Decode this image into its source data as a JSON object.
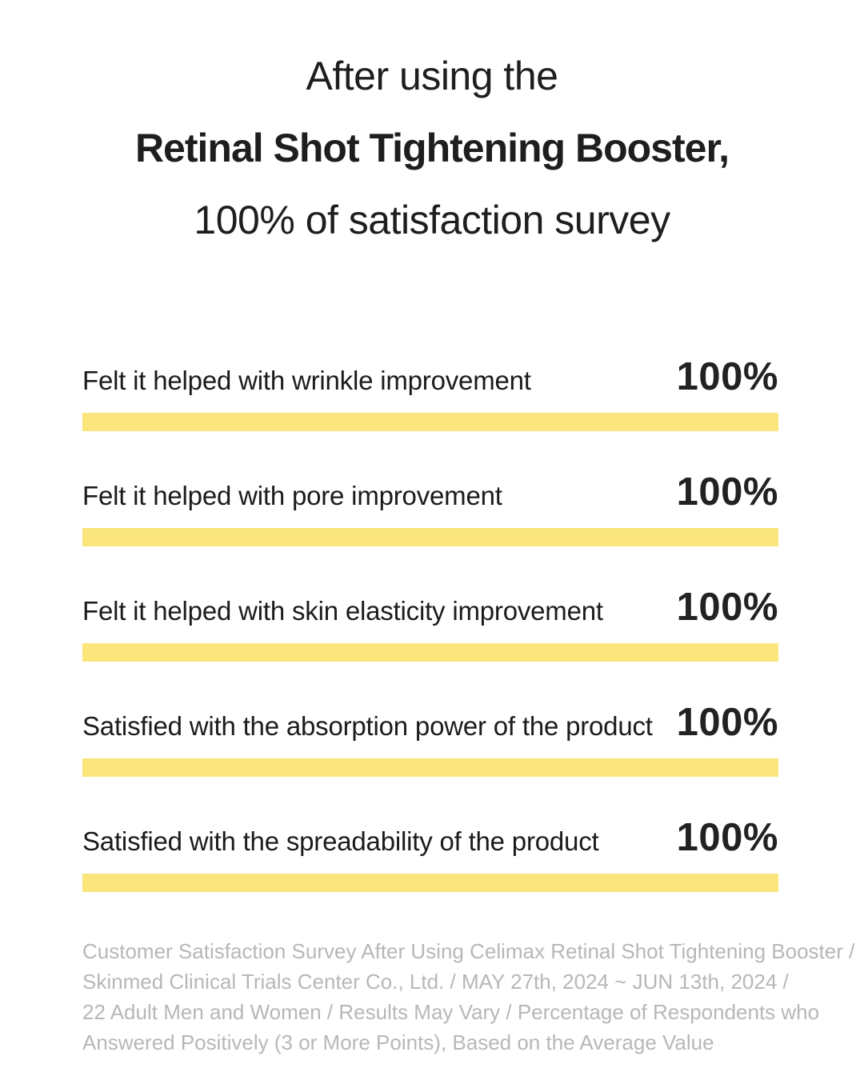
{
  "title": {
    "line1": "After using the",
    "line2": "Retinal Shot Tightening Booster,",
    "line3": "100% of satisfaction survey"
  },
  "survey": {
    "bar_color": "#fae67d",
    "items": [
      {
        "label": "Felt it helped with wrinkle improvement",
        "value": 100,
        "value_display": "100%"
      },
      {
        "label": "Felt it helped with pore improvement",
        "value": 100,
        "value_display": "100%"
      },
      {
        "label": "Felt it helped with skin elasticity improvement",
        "value": 100,
        "value_display": "100%"
      },
      {
        "label": "Satisfied with the absorption power of the product",
        "value": 100,
        "value_display": "100%"
      },
      {
        "label": "Satisfied with the spreadability of the product",
        "value": 100,
        "value_display": "100%"
      }
    ]
  },
  "footer": {
    "lines": [
      "Customer Satisfaction Survey After Using Celimax Retinal Shot Tightening Booster /",
      "Skinmed Clinical Trials Center Co., Ltd. / MAY 27th, 2024 ~ JUN 13th, 2024 /",
      "22 Adult Men and Women / Results May Vary / Percentage of Respondents who",
      "Answered Positively (3 or More Points), Based on the Average Value"
    ],
    "text_color": "#b7b7b7"
  },
  "chart_data": {
    "type": "bar",
    "orientation": "horizontal",
    "title": "After using the Retinal Shot Tightening Booster, 100% of satisfaction survey",
    "categories": [
      "Felt it helped with wrinkle improvement",
      "Felt it helped with pore improvement",
      "Felt it helped with skin elasticity improvement",
      "Satisfied with the absorption power of the product",
      "Satisfied with the spreadability of the product"
    ],
    "values": [
      100,
      100,
      100,
      100,
      100
    ],
    "value_labels": [
      "100%",
      "100%",
      "100%",
      "100%",
      "100%"
    ],
    "unit": "%",
    "xlim": [
      0,
      100
    ],
    "grid": false,
    "legend": false,
    "bar_color": "#fae67d",
    "annotation": "Customer Satisfaction Survey After Using Celimax Retinal Shot Tightening Booster / Skinmed Clinical Trials Center Co., Ltd. / MAY 27th, 2024 ~ JUN 13th, 2024 / 22 Adult Men and Women / Results May Vary / Percentage of Respondents who Answered Positively (3 or More Points), Based on the Average Value"
  }
}
